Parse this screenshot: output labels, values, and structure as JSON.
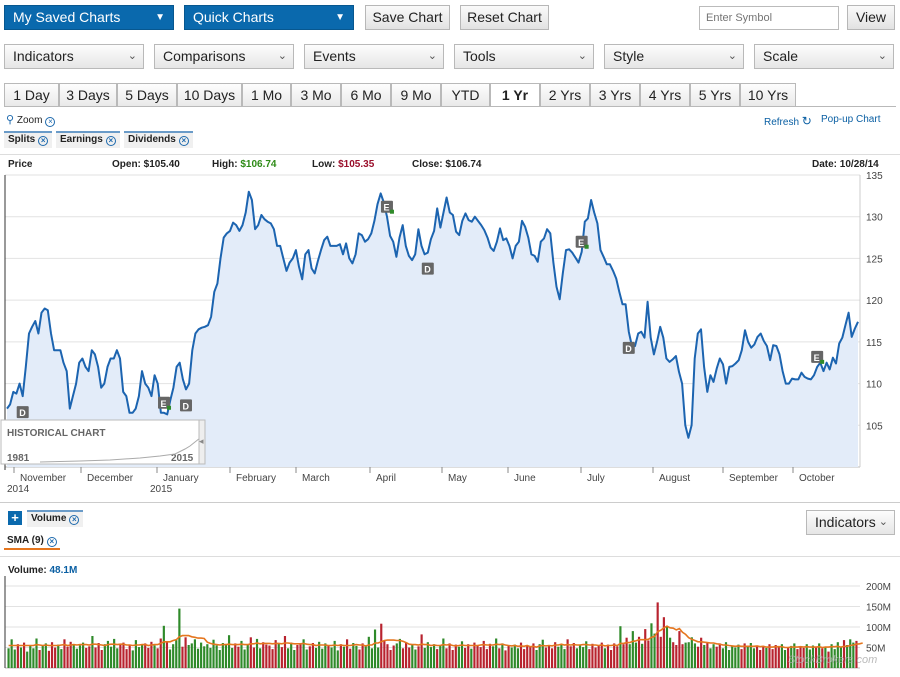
{
  "toolbar": {
    "my_saved_charts": "My Saved Charts",
    "quick_charts": "Quick Charts",
    "save_chart": "Save Chart",
    "reset_chart": "Reset Chart",
    "symbol_placeholder": "Enter Symbol",
    "view": "View"
  },
  "menus": [
    "Indicators",
    "Comparisons",
    "Events",
    "Tools",
    "Style",
    "Scale"
  ],
  "timeframes": [
    "1 Day",
    "3 Days",
    "5 Days",
    "10 Days",
    "1 Mo",
    "3 Mo",
    "6 Mo",
    "9 Mo",
    "YTD",
    "1 Yr",
    "2 Yrs",
    "3 Yrs",
    "4 Yrs",
    "5 Yrs",
    "10 Yrs"
  ],
  "selected_timeframe": "1 Yr",
  "zoom_label": "Zoom",
  "refresh_label": "Refresh",
  "popup_label": "Pop-up Chart",
  "event_tags": [
    "Splits",
    "Earnings",
    "Dividends"
  ],
  "quote": {
    "price_label": "Price",
    "open_label": "Open:",
    "open": "$105.40",
    "high_label": "High:",
    "high": "$106.74",
    "low_label": "Low:",
    "low": "$105.35",
    "close_label": "Close:",
    "close": "$106.74",
    "date_label": "Date:",
    "date": "10/28/14"
  },
  "historical": {
    "title": "HISTORICAL CHART",
    "start": "1981",
    "end": "2015"
  },
  "volume_panel": {
    "add_symbol": "+",
    "volume_tag": "Volume",
    "sma_tag": "SMA (9)",
    "indicators_btn": "Indicators",
    "volume_label": "Volume:",
    "volume_value": "48.1M",
    "watermark": "StockBrokers.com"
  },
  "colors": {
    "line": "#1c64b0",
    "area": "#e3ecf9",
    "up": "#2f8a2a",
    "down": "#b8232f",
    "sma": "#e5761f"
  },
  "chart_data": [
    {
      "type": "area",
      "title": "Price",
      "x_labels": [
        "November",
        "December",
        "January",
        "February",
        "March",
        "April",
        "May",
        "June",
        "July",
        "August",
        "September",
        "October"
      ],
      "year_labels": [
        {
          "month": "November",
          "year": "2014"
        },
        {
          "month": "January",
          "year": "2015"
        }
      ],
      "y_ticks": [
        105,
        110,
        115,
        120,
        125,
        130,
        135
      ],
      "ylim": [
        100,
        135
      ],
      "values": [
        107,
        107.5,
        109,
        108.8,
        110,
        108.5,
        112,
        116,
        116.8,
        117.5,
        116,
        118.5,
        119,
        118.8,
        116,
        114,
        114,
        114,
        112.5,
        111.5,
        107,
        108.5,
        110,
        112.5,
        113,
        112,
        111.5,
        114,
        113.5,
        112,
        109.5,
        110,
        112,
        113,
        113,
        114,
        113,
        109,
        108.5,
        106.5,
        106.5,
        107,
        108.5,
        111.5,
        110,
        109.5,
        108.5,
        111,
        110,
        106.5,
        106.5,
        106.3,
        108,
        109.5,
        112,
        112.5,
        110.5,
        109.3,
        110,
        114,
        116,
        116.5,
        116.7,
        116.8,
        117,
        118,
        121,
        122,
        125,
        127.5,
        128,
        128.3,
        129.3,
        129,
        128.3,
        129,
        130.5,
        133,
        132,
        128.5,
        129,
        130.2,
        129.7,
        129.4,
        129.2,
        128.5,
        126.5,
        126.5,
        125,
        123.5,
        124.5,
        125,
        126,
        124,
        122.5,
        125.5,
        126,
        123.8,
        123.2,
        124.7,
        126,
        127.2,
        127.6,
        126.5,
        126.5,
        126.5,
        126.7,
        125.5,
        126.8,
        125,
        124.4,
        125.5,
        128,
        127.8,
        127,
        127.3,
        128,
        129.5,
        131.5,
        132.8,
        131.7,
        130,
        127.7,
        127,
        125.2,
        127.5,
        129,
        126.5,
        125.3,
        124.8,
        125.5,
        128.5,
        126.5,
        125.5,
        125.7,
        127.3,
        128.3,
        131,
        128.7,
        130.5,
        132.3,
        130.5,
        130.2,
        128.2,
        127.8,
        129.5,
        130.4,
        129.6,
        129.4,
        130,
        129.5,
        129,
        128.4,
        127.5,
        126.3,
        125.9,
        127,
        128.6,
        127.2,
        127.4,
        126.5,
        125,
        126.5,
        127,
        129.5,
        128.8,
        127.5,
        125.5,
        125.3,
        124.6,
        127,
        127.4,
        128.5,
        128,
        124.5,
        121.6,
        120.1,
        123.2,
        126,
        126.1,
        125.7,
        125.1,
        124.5,
        125.8,
        129.4,
        129.8,
        132,
        130.5,
        129.2,
        126,
        125.2,
        124.3,
        124.3,
        123.5,
        122.6,
        121,
        119.5,
        119.5,
        116.2,
        114.5,
        114.5,
        116,
        116.2,
        115.5,
        119.8,
        115.5,
        113.5,
        115,
        116.8,
        115.5,
        113,
        112.6,
        112.9,
        113.3,
        111.4,
        110,
        105,
        103.5,
        105,
        113,
        116,
        116.5,
        112,
        109,
        111,
        110.2,
        111.8,
        113,
        112.3,
        110,
        112,
        112.1,
        112.4,
        112.8,
        114,
        116.4,
        115,
        114.3,
        114.7,
        115.6,
        116,
        115.1,
        114.5,
        112.8,
        114.6,
        114.5,
        113.5,
        111.5,
        110,
        110,
        110.6,
        110.5,
        110.5,
        111.3,
        110.8,
        110.6,
        110.5,
        111,
        112,
        112.5,
        111.5,
        112.5,
        111.7,
        113.1,
        112.4,
        114.8,
        115.5,
        117,
        118.5,
        115.6,
        116.6,
        117.4
      ],
      "events": [
        {
          "type": "D",
          "index": 5
        },
        {
          "type": "E",
          "index": 50
        },
        {
          "type": "D",
          "index": 57
        },
        {
          "type": "E",
          "index": 121
        },
        {
          "type": "D",
          "index": 134
        },
        {
          "type": "E",
          "index": 183
        },
        {
          "type": "D",
          "index": 198
        },
        {
          "type": "E",
          "index": 258
        }
      ]
    },
    {
      "type": "bar",
      "title": "Volume",
      "unit": "M",
      "y_ticks": [
        50,
        100,
        150,
        200
      ],
      "y_tick_labels": [
        "50M",
        "100M",
        "150M",
        "200M"
      ],
      "ylim": [
        0,
        200
      ],
      "values": [
        48,
        70,
        45,
        58,
        50,
        62,
        40,
        55,
        48,
        72,
        44,
        56,
        60,
        42,
        63,
        50,
        57,
        46,
        70,
        52,
        64,
        58,
        47,
        55,
        62,
        49,
        53,
        78,
        50,
        61,
        44,
        58,
        66,
        52,
        71,
        48,
        59,
        62,
        46,
        55,
        43,
        68,
        51,
        57,
        60,
        49,
        64,
        55,
        48,
        72,
        103,
        63,
        45,
        58,
        68,
        145,
        52,
        75,
        56,
        60,
        70,
        47,
        62,
        53,
        58,
        49,
        69,
        55,
        44,
        61,
        57,
        80,
        49,
        60,
        52,
        66,
        45,
        58,
        75,
        50,
        71,
        48,
        63,
        57,
        55,
        46,
        68,
        59,
        51,
        78,
        48,
        62,
        44,
        56,
        58,
        70,
        45,
        53,
        61,
        49,
        64,
        47,
        60,
        55,
        50,
        66,
        43,
        58,
        52,
        70,
        47,
        61,
        54,
        45,
        60,
        56,
        76,
        48,
        94,
        50,
        108,
        67,
        58,
        44,
        55,
        60,
        71,
        48,
        62,
        50,
        57,
        45,
        53,
        82,
        49,
        63,
        51,
        58,
        46,
        55,
        72,
        48,
        60,
        44,
        57,
        52,
        65,
        49,
        58,
        47,
        62,
        55,
        51,
        66,
        46,
        59,
        53,
        72,
        48,
        60,
        43,
        56,
        50,
        57,
        48,
        62,
        46,
        55,
        52,
        60,
        44,
        58,
        69,
        50,
        56,
        48,
        63,
        52,
        58,
        46,
        70,
        53,
        61,
        48,
        56,
        51,
        65,
        46,
        59,
        50,
        55,
        62,
        48,
        57,
        44,
        60,
        53,
        102,
        58,
        74,
        58,
        90,
        62,
        76,
        59,
        95,
        67,
        109,
        84,
        160,
        76,
        124,
        100,
        74,
        63,
        56,
        90,
        58,
        62,
        63,
        75,
        60,
        52,
        74,
        56,
        62,
        48,
        58,
        52,
        60,
        48,
        63,
        44,
        55,
        50,
        57,
        46,
        60,
        52,
        61,
        48,
        55,
        44,
        52,
        49,
        58,
        46,
        56,
        53,
        58,
        44,
        49,
        54,
        60,
        46,
        52,
        49,
        58,
        45,
        55,
        50,
        60,
        48,
        52,
        40,
        58,
        46,
        63,
        51,
        68,
        56,
        70,
        62,
        66
      ],
      "sma": [
        55,
        55,
        55,
        55,
        55,
        55,
        55,
        55,
        55,
        57,
        56,
        55,
        56,
        55,
        55,
        55,
        55,
        56,
        57,
        55,
        56,
        57,
        56,
        57,
        57,
        57,
        56,
        58,
        58,
        57,
        56,
        55,
        57,
        58,
        58,
        57,
        58,
        58,
        56,
        56,
        55,
        56,
        56,
        57,
        57,
        55,
        56,
        57,
        57,
        60,
        64,
        64,
        64,
        67,
        69,
        76,
        79,
        79,
        79,
        76,
        75,
        73,
        73,
        72,
        63,
        60,
        58,
        57,
        56,
        57,
        57,
        58,
        57,
        57,
        57,
        58,
        57,
        57,
        59,
        59,
        61,
        59,
        60,
        60,
        60,
        59,
        60,
        60,
        59,
        61,
        61,
        60,
        59,
        59,
        59,
        60,
        58,
        57,
        57,
        55,
        56,
        56,
        56,
        55,
        55,
        56,
        55,
        56,
        55,
        55,
        55,
        56,
        57,
        56,
        56,
        54,
        56,
        56,
        61,
        61,
        64,
        67,
        68,
        68,
        68,
        67,
        67,
        65,
        62,
        58,
        57,
        57,
        56,
        58,
        57,
        57,
        55,
        56,
        55,
        55,
        57,
        56,
        57,
        55,
        54,
        55,
        56,
        55,
        55,
        55,
        55,
        55,
        56,
        57,
        56,
        56,
        56,
        58,
        57,
        58,
        56,
        55,
        54,
        55,
        53,
        54,
        53,
        55,
        52,
        53,
        51,
        54,
        55,
        54,
        55,
        54,
        56,
        56,
        58,
        56,
        57,
        56,
        57,
        56,
        56,
        57,
        57,
        56,
        56,
        56,
        55,
        56,
        54,
        55,
        55,
        56,
        55,
        60,
        60,
        62,
        62,
        65,
        66,
        69,
        69,
        69,
        70,
        75,
        77,
        89,
        92,
        98,
        102,
        98,
        97,
        93,
        96,
        87,
        82,
        74,
        70,
        67,
        64,
        64,
        63,
        62,
        61,
        61,
        59,
        58,
        56,
        56,
        55,
        54,
        53,
        54,
        53,
        53,
        53,
        53,
        53,
        54,
        52,
        53,
        51,
        51,
        51,
        52,
        52,
        52,
        50,
        50,
        51,
        51,
        51,
        52,
        51,
        52,
        51,
        51,
        51,
        52,
        50,
        51,
        51,
        52,
        52,
        53,
        51,
        53,
        53,
        55,
        56,
        58,
        59,
        61
      ]
    }
  ]
}
